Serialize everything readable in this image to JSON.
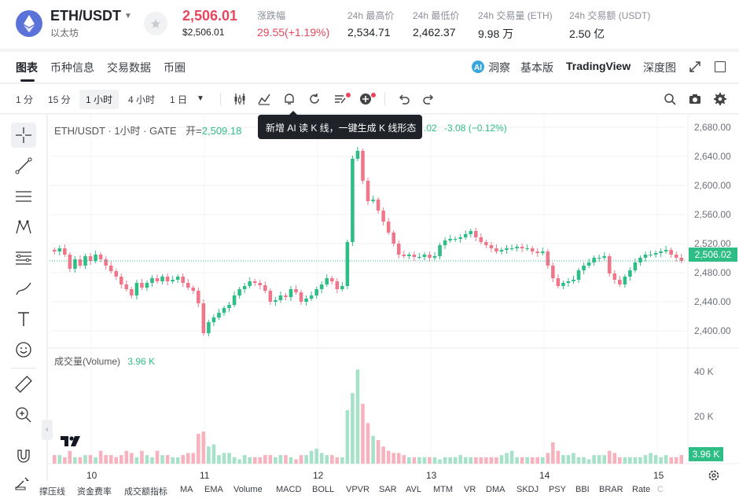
{
  "header": {
    "pair": "ETH/USDT",
    "pair_cn": "以太坊",
    "price": "2,506.01",
    "price_usd": "$2,506.01",
    "stats": [
      {
        "label": "涨跌幅",
        "value": "29.55(+1.19%)",
        "color": "#e5485e"
      },
      {
        "label": "24h 最高价",
        "value": "2,534.71"
      },
      {
        "label": "24h 最低价",
        "value": "2,462.37"
      },
      {
        "label": "24h 交易量 (ETH)",
        "value": "9.98 万"
      },
      {
        "label": "24h 交易额 (USDT)",
        "value": "2.50 亿"
      }
    ]
  },
  "tabs": [
    "图表",
    "币种信息",
    "交易数据",
    "币圈"
  ],
  "right_tabs": {
    "dongcha": "洞察",
    "basic": "基本版",
    "tradingview": "TradingView",
    "depth": "深度图"
  },
  "toolbar": {
    "timeframes": [
      "1 分",
      "15 分",
      "1 小时",
      "4 小时",
      "1 日"
    ]
  },
  "chart": {
    "legend_pair": "ETH/USDT · 1小时 · GATE",
    "legend_open_label": "开=",
    "legend_open_value": "2,509.18",
    "tooltip": "新增 AI 读 K 线，一键生成 K 线形态",
    "legend_tail": ".02",
    "change": "-3.08 (−0.12%)",
    "volume_label": "成交量(Volume)",
    "volume_value": "3.96 K",
    "current_price_tag": "2,506.02",
    "volume_tag": "3.96 K",
    "y_labels": [
      "2,680.00",
      "2,640.00",
      "2,600.00",
      "2,560.00",
      "2,520.00",
      "2,480.00",
      "2,440.00",
      "2,400.00"
    ],
    "vol_y_labels": [
      "40 K",
      "20 K"
    ],
    "x_labels": [
      "10",
      "11",
      "12",
      "13",
      "14",
      "15"
    ]
  },
  "chart_data": {
    "type": "candlestick",
    "title": "ETH/USDT · 1小时 · GATE",
    "ylim": [
      2392,
      2690
    ],
    "up_color": "#2ebd85",
    "down_color": "#f0778a",
    "candles_close": [
      2518,
      2522,
      2514,
      2496,
      2508,
      2500,
      2512,
      2506,
      2514,
      2508,
      2500,
      2493,
      2486,
      2476,
      2470,
      2462,
      2478,
      2472,
      2478,
      2484,
      2480,
      2486,
      2480,
      2482,
      2486,
      2478,
      2472,
      2468,
      2452,
      2414,
      2428,
      2434,
      2440,
      2446,
      2450,
      2462,
      2470,
      2474,
      2480,
      2478,
      2475,
      2468,
      2454,
      2456,
      2462,
      2460,
      2470,
      2466,
      2454,
      2458,
      2462,
      2470,
      2476,
      2484,
      2480,
      2470,
      2474,
      2530,
      2636,
      2646,
      2608,
      2582,
      2584,
      2570,
      2556,
      2542,
      2528,
      2514,
      2512,
      2514,
      2511,
      2511,
      2514,
      2510,
      2512,
      2526,
      2532,
      2534,
      2534,
      2536,
      2540,
      2544,
      2536,
      2530,
      2526,
      2522,
      2518,
      2520,
      2522,
      2522,
      2524,
      2522,
      2522,
      2518,
      2516,
      2518,
      2500,
      2484,
      2474,
      2478,
      2480,
      2482,
      2494,
      2500,
      2504,
      2510,
      2510,
      2512,
      2490,
      2482,
      2476,
      2486,
      2494,
      2504,
      2510,
      2514,
      2514,
      2516,
      2518,
      2520,
      2514,
      2510,
      2506
    ],
    "volumes_k": [
      4,
      4,
      3,
      6,
      3,
      3,
      4,
      4,
      3,
      6,
      4,
      4,
      3,
      4,
      6,
      5,
      3,
      6,
      4,
      3,
      6,
      4,
      4,
      3,
      3,
      4,
      5,
      5,
      14,
      15,
      8,
      9,
      4,
      5,
      5,
      3,
      2,
      4,
      3,
      3,
      3,
      4,
      4,
      3,
      4,
      4,
      3,
      2,
      4,
      4,
      6,
      7,
      5,
      4,
      4,
      3,
      3,
      25,
      33,
      44,
      28,
      19,
      13,
      11,
      8,
      6,
      5,
      5,
      4,
      3,
      3,
      3,
      3,
      3,
      3,
      2,
      3,
      3,
      3,
      4,
      3,
      3,
      3,
      3,
      3,
      3,
      3,
      4,
      5,
      6,
      3,
      3,
      3,
      3,
      3,
      3,
      5,
      10,
      6,
      4,
      4,
      5,
      3,
      3,
      2,
      4,
      4,
      4,
      6,
      5,
      3,
      3,
      3,
      3,
      3,
      4,
      5,
      4,
      3,
      4,
      3,
      3,
      4
    ]
  }
}
